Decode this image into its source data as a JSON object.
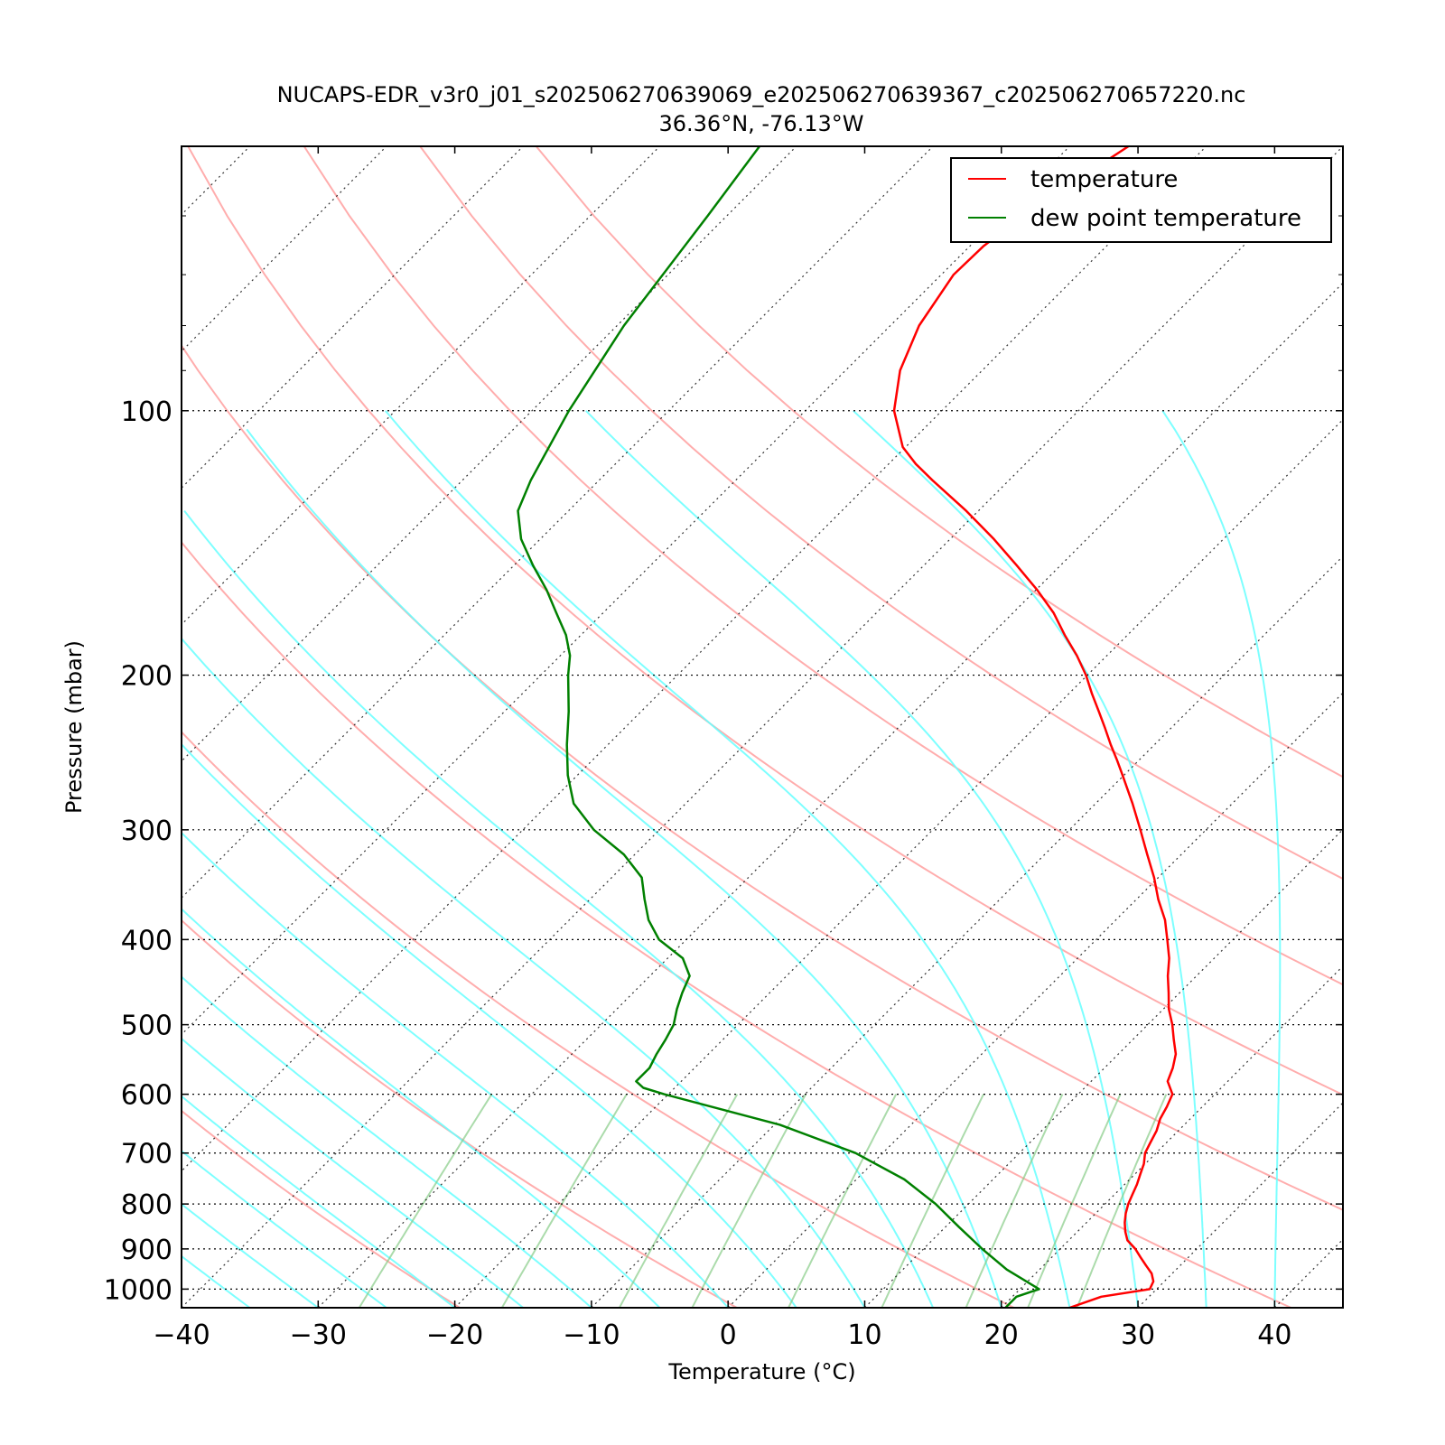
{
  "chart_data": {
    "type": "line",
    "title": "NUCAPS-EDR_v3r0_j01_s202506270639069_e202506270639367_c202506270657220.nc",
    "subtitle": "36.36°N, -76.13°W",
    "xlabel": "Temperature (°C)",
    "ylabel": "Pressure (mbar)",
    "xlim": [
      -40,
      45
    ],
    "ylim": [
      1050,
      50
    ],
    "y_scale": "log",
    "x_ticks": [
      "−40",
      "−30",
      "−20",
      "−10",
      "0",
      "10",
      "20",
      "30",
      "40"
    ],
    "y_ticks": [
      "100",
      "200",
      "300",
      "400",
      "500",
      "600",
      "700",
      "800",
      "900",
      "1000"
    ],
    "legend_position": "top-right",
    "series": [
      {
        "name": "temperature",
        "color": "#ff0000",
        "pressure": [
          1050,
          1020,
          1000,
          980,
          960,
          940,
          920,
          900,
          880,
          860,
          840,
          820,
          800,
          780,
          760,
          740,
          720,
          700,
          680,
          660,
          640,
          620,
          600,
          580,
          560,
          540,
          520,
          500,
          480,
          460,
          440,
          420,
          400,
          380,
          360,
          340,
          320,
          300,
          280,
          260,
          250,
          240,
          230,
          220,
          210,
          200,
          190,
          180,
          170,
          160,
          150,
          140,
          130,
          120,
          115,
          110,
          100,
          90,
          80,
          70,
          65,
          60,
          55,
          50
        ],
        "temperature": [
          25,
          26.5,
          29.5,
          29.2,
          28.5,
          27.5,
          26.5,
          25.5,
          24.3,
          23.5,
          22.8,
          22.2,
          21.7,
          21.3,
          20.9,
          20.4,
          19.9,
          19.2,
          18.8,
          18.4,
          17.8,
          17.4,
          16.9,
          15.6,
          15.0,
          14.2,
          13.0,
          11.8,
          10.4,
          9.2,
          7.9,
          6.7,
          5.2,
          3.6,
          1.6,
          -0.3,
          -2.5,
          -4.8,
          -7.3,
          -10.1,
          -11.6,
          -13.2,
          -14.8,
          -16.5,
          -18.3,
          -20.1,
          -22.2,
          -24.6,
          -27.0,
          -29.9,
          -33.2,
          -36.8,
          -40.9,
          -45.6,
          -48.0,
          -50.2,
          -53.5,
          -56.0,
          -57.9,
          -59.1,
          -59.0,
          -58.3,
          -57.1,
          -55.7
        ]
      },
      {
        "name": "dew point temperature",
        "color": "#008000",
        "pressure": [
          1050,
          1020,
          1000,
          950,
          900,
          850,
          800,
          750,
          700,
          650,
          600,
          590,
          580,
          560,
          540,
          520,
          500,
          480,
          460,
          440,
          420,
          400,
          380,
          360,
          340,
          320,
          300,
          280,
          260,
          240,
          220,
          200,
          190,
          180,
          170,
          160,
          150,
          140,
          130,
          120,
          100,
          80,
          60,
          50
        ],
        "temperature": [
          20.3,
          20.3,
          21.4,
          17.6,
          14.3,
          11.0,
          7.6,
          3.5,
          -2.0,
          -9.6,
          -20.3,
          -22.3,
          -23.3,
          -23.3,
          -23.8,
          -24.2,
          -24.7,
          -25.6,
          -26.4,
          -27.1,
          -28.9,
          -32.0,
          -34.2,
          -36.0,
          -37.8,
          -40.8,
          -44.8,
          -48.2,
          -50.7,
          -53.0,
          -55.3,
          -58.0,
          -59.3,
          -61.1,
          -63.4,
          -65.8,
          -68.6,
          -71.4,
          -73.7,
          -75.0,
          -77.3,
          -79.5,
          -81.4,
          -82.7
        ]
      }
    ],
    "background_lines": {
      "isobars_mbar": [
        1000,
        900,
        800,
        700,
        600,
        500,
        400,
        300,
        200,
        100
      ],
      "dry_adiabats_color": "#ff9999",
      "moist_adiabats_color": "#66ffff",
      "mixing_ratio_color": "#88cc88",
      "isotherms_style": "dotted black"
    }
  }
}
